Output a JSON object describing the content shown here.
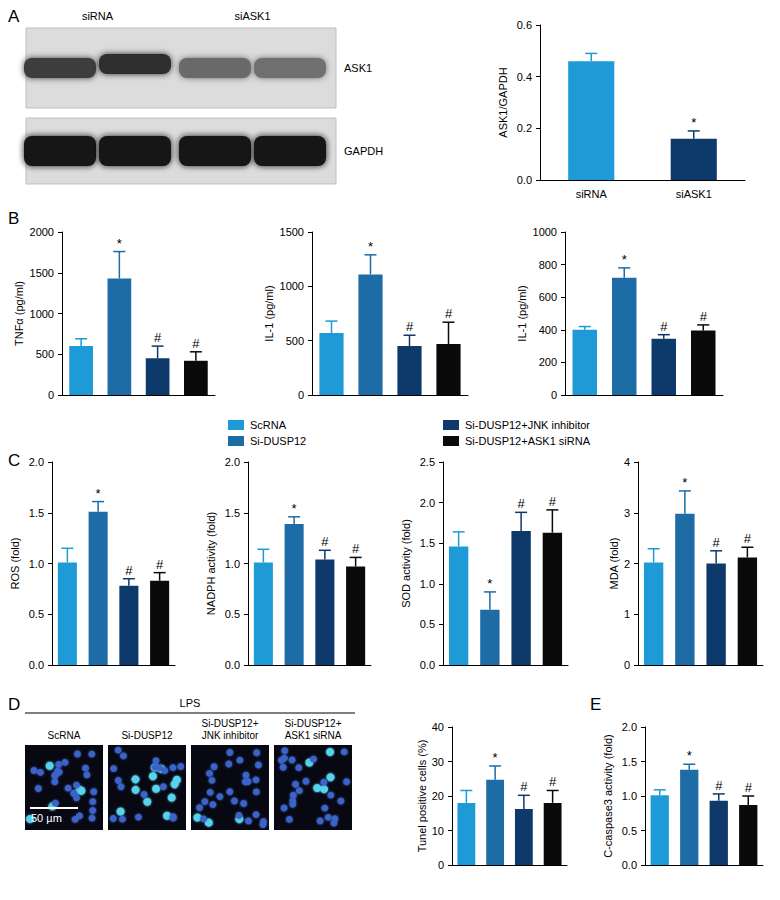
{
  "panel_letters": [
    "A",
    "B",
    "C",
    "D",
    "E"
  ],
  "blot": {
    "lanes": [
      "siRNA",
      "siASK1"
    ],
    "bands": [
      "ASK1",
      "GAPDH"
    ]
  },
  "legend_entries": [
    {
      "name": "ScRNA",
      "color": "#1e9bd7"
    },
    {
      "name": "Si-DUSP12",
      "color": "#1d6ca6"
    },
    {
      "name": "Si-DUSP12+JNK inhibitor",
      "color": "#0d3a6a"
    },
    {
      "name": "Si-DUSP12+ASK1 siRNA",
      "color": "#0a0a0a"
    }
  ],
  "images": {
    "condition": "LPS",
    "labels": [
      "ScRNA",
      "Si-DUSP12",
      "Si-DUSP12+\nJNK inhibitor",
      "Si-DUSP12+\nASK1 siRNA"
    ],
    "scale_bar": "50 µm"
  },
  "chart_data": [
    {
      "type": "bar",
      "ylabel": "ASK1/GAPDH",
      "categories": [
        "siRNA",
        "siASK1"
      ],
      "values": [
        0.46,
        0.16
      ],
      "errors": [
        0.03,
        0.03
      ],
      "colors": [
        "#1e9bd7",
        "#0d3a6a"
      ],
      "ylim": [
        0,
        0.6
      ],
      "yticks": [
        {
          "value": 0,
          "label": "0.0"
        },
        0.2,
        0.4,
        0.6
      ],
      "annotations": [
        {
          "index": 1,
          "text": "*"
        }
      ]
    },
    {
      "type": "bar",
      "ylabel": "TNFα (pg/ml)",
      "categories": [
        null,
        null,
        null,
        null
      ],
      "values": [
        600,
        1430,
        450,
        420
      ],
      "errors": [
        90,
        330,
        150,
        110
      ],
      "colors": [
        "#1e9bd7",
        "#1d6ca6",
        "#0d3a6a",
        "#0a0a0a"
      ],
      "ylim": [
        0,
        2000
      ],
      "yticks": [
        0,
        500,
        1000,
        1500,
        2000
      ],
      "annotations": [
        {
          "index": 1,
          "text": "*"
        },
        {
          "index": 2,
          "text": "#"
        },
        {
          "index": 3,
          "text": "#"
        }
      ]
    },
    {
      "type": "bar",
      "ylabel": "IL-1 (pg/ml)",
      "categories": [
        null,
        null,
        null,
        null
      ],
      "values": [
        570,
        1110,
        450,
        470
      ],
      "errors": [
        110,
        180,
        100,
        200
      ],
      "colors": [
        "#1e9bd7",
        "#1d6ca6",
        "#0d3a6a",
        "#0a0a0a"
      ],
      "ylim": [
        0,
        1500
      ],
      "yticks": [
        0,
        500,
        1000,
        1500
      ],
      "annotations": [
        {
          "index": 1,
          "text": "*"
        },
        {
          "index": 2,
          "text": "#"
        },
        {
          "index": 3,
          "text": "#"
        }
      ]
    },
    {
      "type": "bar",
      "ylabel": "IL-1 (pg/ml)",
      "categories": [
        null,
        null,
        null,
        null
      ],
      "values": [
        400,
        720,
        345,
        395
      ],
      "errors": [
        20,
        60,
        25,
        35
      ],
      "colors": [
        "#1e9bd7",
        "#1d6ca6",
        "#0d3a6a",
        "#0a0a0a"
      ],
      "ylim": [
        0,
        1000
      ],
      "yticks": [
        0,
        200,
        400,
        600,
        800,
        1000
      ],
      "annotations": [
        {
          "index": 1,
          "text": "*"
        },
        {
          "index": 2,
          "text": "#"
        },
        {
          "index": 3,
          "text": "#"
        }
      ]
    },
    {
      "type": "bar",
      "ylabel": "ROS (fold)",
      "categories": [
        null,
        null,
        null,
        null
      ],
      "values": [
        1.01,
        1.51,
        0.78,
        0.83
      ],
      "errors": [
        0.14,
        0.1,
        0.07,
        0.08
      ],
      "colors": [
        "#1e9bd7",
        "#1d6ca6",
        "#0d3a6a",
        "#0a0a0a"
      ],
      "ylim": [
        0,
        2
      ],
      "yticks": [
        {
          "value": 0,
          "label": "0.0"
        },
        0.5,
        {
          "value": 1,
          "label": "1.0"
        },
        1.5,
        {
          "value": 2,
          "label": "2.0"
        }
      ],
      "annotations": [
        {
          "index": 1,
          "text": "*"
        },
        {
          "index": 2,
          "text": "#"
        },
        {
          "index": 3,
          "text": "#"
        }
      ]
    },
    {
      "type": "bar",
      "ylabel": "NADPH activity (fold)",
      "categories": [
        null,
        null,
        null,
        null
      ],
      "values": [
        1.01,
        1.39,
        1.04,
        0.97
      ],
      "errors": [
        0.13,
        0.07,
        0.09,
        0.09
      ],
      "colors": [
        "#1e9bd7",
        "#1d6ca6",
        "#0d3a6a",
        "#0a0a0a"
      ],
      "ylim": [
        0,
        2
      ],
      "yticks": [
        {
          "value": 0,
          "label": "0.0"
        },
        0.5,
        {
          "value": 1,
          "label": "1.0"
        },
        1.5,
        {
          "value": 2,
          "label": "2.0"
        }
      ],
      "annotations": [
        {
          "index": 1,
          "text": "*"
        },
        {
          "index": 2,
          "text": "#"
        },
        {
          "index": 3,
          "text": "#"
        }
      ]
    },
    {
      "type": "bar",
      "ylabel": "SOD activity (fold)",
      "categories": [
        null,
        null,
        null,
        null
      ],
      "values": [
        1.46,
        0.68,
        1.65,
        1.63
      ],
      "errors": [
        0.18,
        0.22,
        0.23,
        0.28
      ],
      "colors": [
        "#1e9bd7",
        "#1d6ca6",
        "#0d3a6a",
        "#0a0a0a"
      ],
      "ylim": [
        0,
        2.5
      ],
      "yticks": [
        {
          "value": 0,
          "label": "0.0"
        },
        0.5,
        {
          "value": 1,
          "label": "1.0"
        },
        1.5,
        {
          "value": 2,
          "label": "2.0"
        },
        2.5
      ],
      "annotations": [
        {
          "index": 1,
          "text": "*"
        },
        {
          "index": 2,
          "text": "#"
        },
        {
          "index": 3,
          "text": "#"
        }
      ]
    },
    {
      "type": "bar",
      "ylabel": "MDA (fold)",
      "categories": [
        null,
        null,
        null,
        null
      ],
      "values": [
        2.02,
        2.98,
        2.0,
        2.12
      ],
      "errors": [
        0.27,
        0.45,
        0.25,
        0.2
      ],
      "colors": [
        "#1e9bd7",
        "#1d6ca6",
        "#0d3a6a",
        "#0a0a0a"
      ],
      "ylim": [
        0,
        4
      ],
      "yticks": [
        0,
        1,
        2,
        3,
        4
      ],
      "annotations": [
        {
          "index": 1,
          "text": "*"
        },
        {
          "index": 2,
          "text": "#"
        },
        {
          "index": 3,
          "text": "#"
        }
      ]
    },
    {
      "type": "bar",
      "ylabel": "Tunel positive cells (%)",
      "categories": [
        null,
        null,
        null,
        null
      ],
      "values": [
        18,
        24.7,
        16.2,
        18
      ],
      "errors": [
        3.6,
        4,
        4,
        3.6
      ],
      "colors": [
        "#1e9bd7",
        "#1d6ca6",
        "#0d3a6a",
        "#0a0a0a"
      ],
      "ylim": [
        0,
        40
      ],
      "yticks": [
        0,
        10,
        20,
        30,
        40
      ],
      "annotations": [
        {
          "index": 1,
          "text": "*"
        },
        {
          "index": 2,
          "text": "#"
        },
        {
          "index": 3,
          "text": "#"
        }
      ]
    },
    {
      "type": "bar",
      "ylabel": "C-caspase3 activity (fold)",
      "categories": [
        null,
        null,
        null,
        null
      ],
      "values": [
        1.01,
        1.38,
        0.93,
        0.87
      ],
      "errors": [
        0.08,
        0.08,
        0.1,
        0.13
      ],
      "colors": [
        "#1e9bd7",
        "#1d6ca6",
        "#0d3a6a",
        "#0a0a0a"
      ],
      "ylim": [
        0,
        2
      ],
      "yticks": [
        {
          "value": 0,
          "label": "0.0"
        },
        0.5,
        {
          "value": 1,
          "label": "1.0"
        },
        1.5,
        {
          "value": 2,
          "label": "2.0"
        }
      ],
      "annotations": [
        {
          "index": 1,
          "text": "*"
        },
        {
          "index": 2,
          "text": "#"
        },
        {
          "index": 3,
          "text": "#"
        }
      ]
    }
  ]
}
